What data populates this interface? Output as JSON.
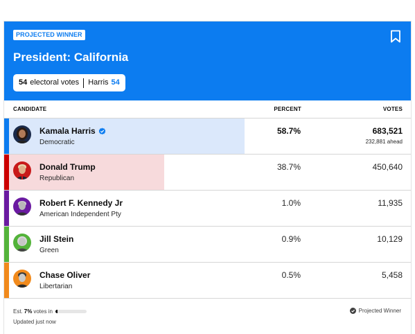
{
  "header": {
    "badge": "PROJECTED WINNER",
    "title": "President: California",
    "electoral_votes": "54",
    "electoral_label": "electoral votes",
    "leader_name": "Harris",
    "leader_votes": "54",
    "accent_color": "#0c7cf0"
  },
  "columns": {
    "candidate": "CANDIDATE",
    "percent": "PERCENT",
    "votes": "VOTES"
  },
  "candidates": [
    {
      "name": "Kamala Harris",
      "party": "Democratic",
      "percent": "58.7%",
      "votes": "683,521",
      "ahead": "232,881 ahead",
      "winner": true,
      "stripe_color": "#0c7cf0",
      "bar_color": "#dbe8fb",
      "bar_fraction": 0.587,
      "avatar_icon": "kamala-harris-avatar"
    },
    {
      "name": "Donald Trump",
      "party": "Republican",
      "percent": "38.7%",
      "votes": "450,640",
      "winner": false,
      "stripe_color": "#cc0000",
      "bar_color": "#f7dadc",
      "bar_fraction": 0.387,
      "avatar_icon": "donald-trump-avatar"
    },
    {
      "name": "Robert F. Kennedy Jr",
      "party": "American Independent Pty",
      "percent": "1.0%",
      "votes": "11,935",
      "winner": false,
      "stripe_color": "#6a1aa1",
      "bar_color": "#ffffff",
      "bar_fraction": 0.0,
      "avatar_icon": "rfk-jr-avatar"
    },
    {
      "name": "Jill Stein",
      "party": "Green",
      "percent": "0.9%",
      "votes": "10,129",
      "winner": false,
      "stripe_color": "#53b33a",
      "bar_color": "#ffffff",
      "bar_fraction": 0.0,
      "avatar_icon": "jill-stein-avatar"
    },
    {
      "name": "Chase Oliver",
      "party": "Libertarian",
      "percent": "0.5%",
      "votes": "5,458",
      "winner": false,
      "stripe_color": "#f18a1c",
      "bar_color": "#ffffff",
      "bar_fraction": 0.0,
      "avatar_icon": "chase-oliver-avatar"
    }
  ],
  "footer": {
    "est_prefix": "Est.",
    "est_percent": "7%",
    "est_suffix": "votes in",
    "progress_fraction": 0.07,
    "updated": "Updated just now",
    "legend": "Projected Winner"
  }
}
